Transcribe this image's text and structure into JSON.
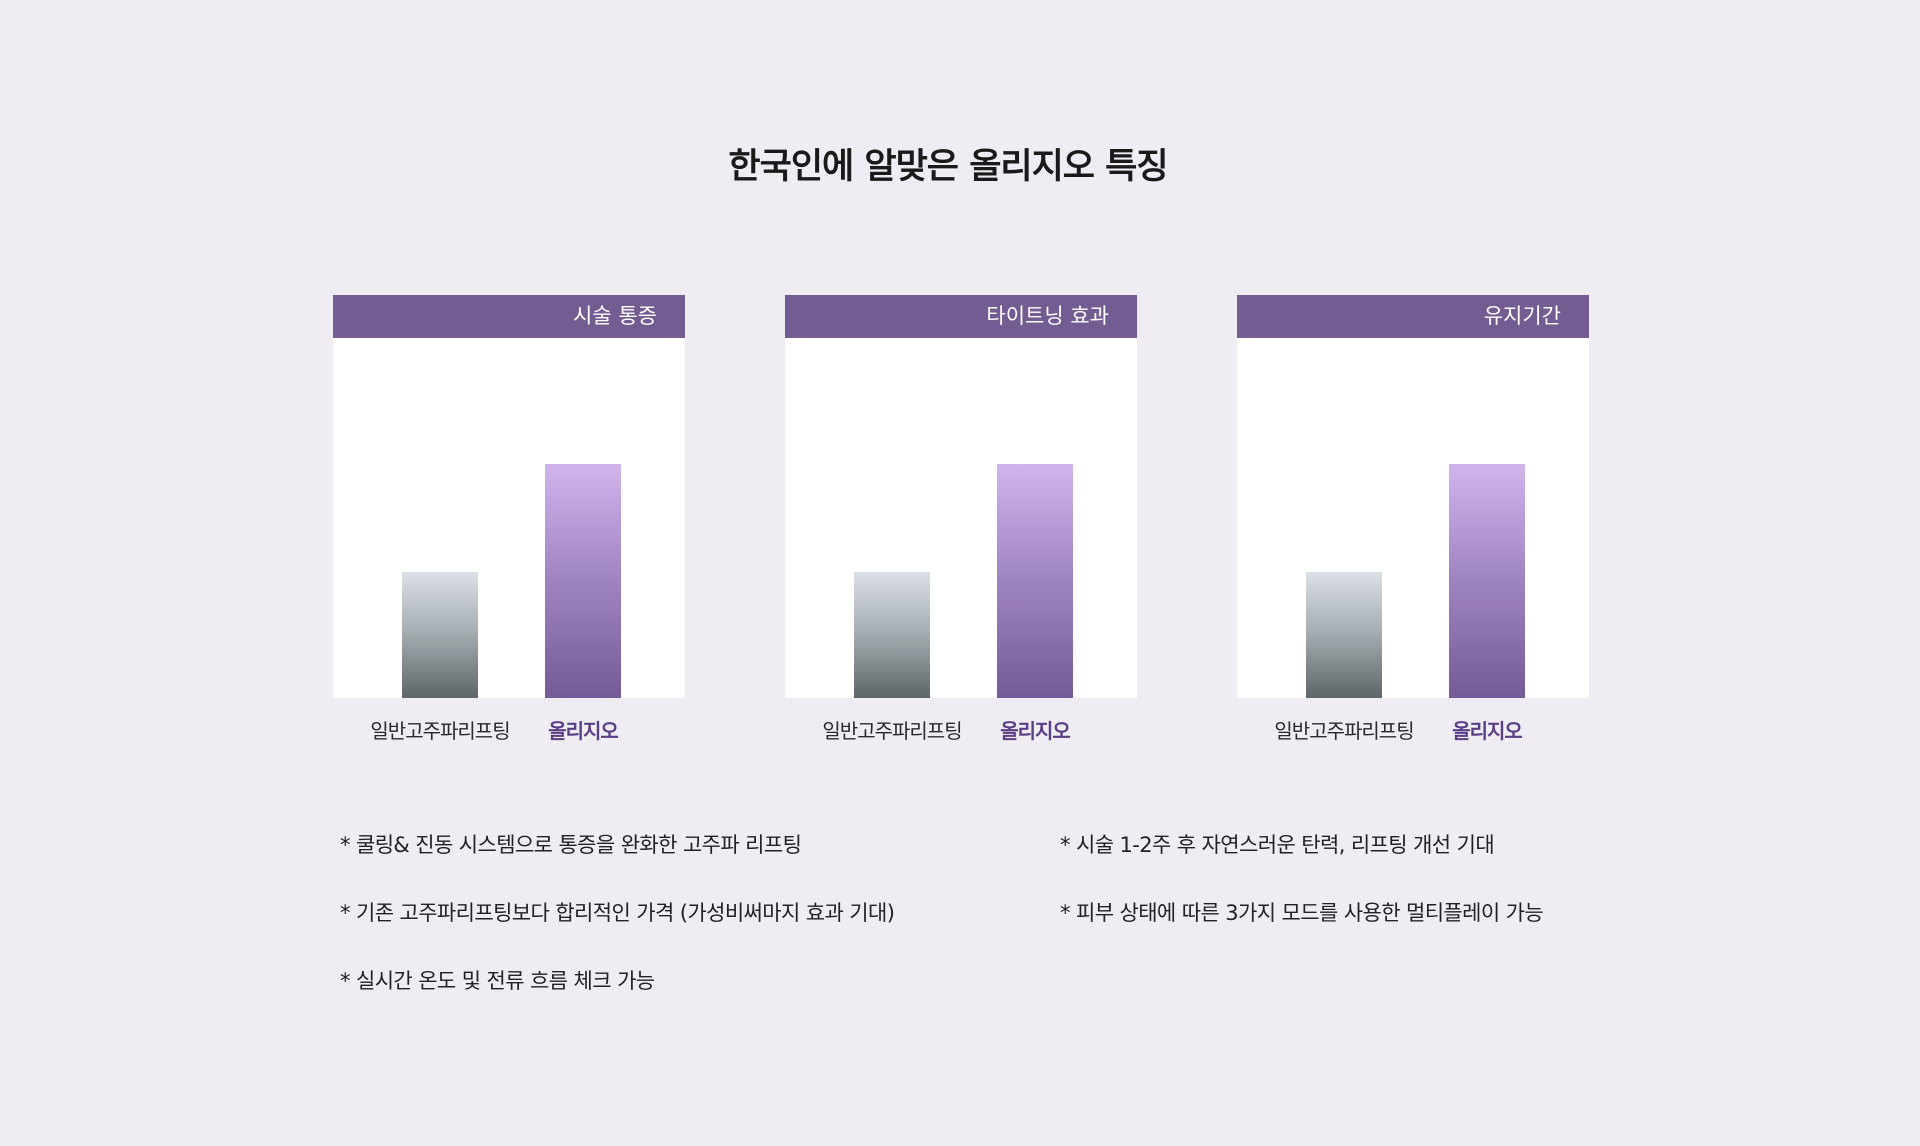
{
  "title": "한국인에 알맞은 올리지오 특징",
  "chart_data": [
    {
      "type": "bar",
      "title": "시술 통증",
      "categories": [
        "일반고주파리프팅",
        "올리지오"
      ],
      "values": [
        35,
        65
      ],
      "colors": [
        "#5e6669",
        "#745b95"
      ]
    },
    {
      "type": "bar",
      "title": "타이트닝 효과",
      "categories": [
        "일반고주파리프팅",
        "올리지오"
      ],
      "values": [
        35,
        65
      ],
      "colors": [
        "#5e6669",
        "#745b95"
      ]
    },
    {
      "type": "bar",
      "title": "유지기간",
      "categories": [
        "일반고주파리프팅",
        "올리지오"
      ],
      "values": [
        35,
        65
      ],
      "colors": [
        "#5e6669",
        "#745b95"
      ]
    }
  ],
  "notes": [
    "* 쿨링& 진동 시스템으로 통증을 완화한 고주파 리프팅",
    "* 시술 1-2주 후 자연스러운 탄력, 리프팅 개선 기대",
    "* 기존 고주파리프팅보다 합리적인 가격 (가성비써마지 효과 기대)",
    "* 피부 상태에 따른 3가지 모드를 사용한 멀티플레이 가능",
    "* 실시간 온도 및 전류 흐름 체크 가능"
  ],
  "colors": {
    "background": "#efecf3",
    "header": "#725c91",
    "accent_text": "#5a3e86"
  }
}
